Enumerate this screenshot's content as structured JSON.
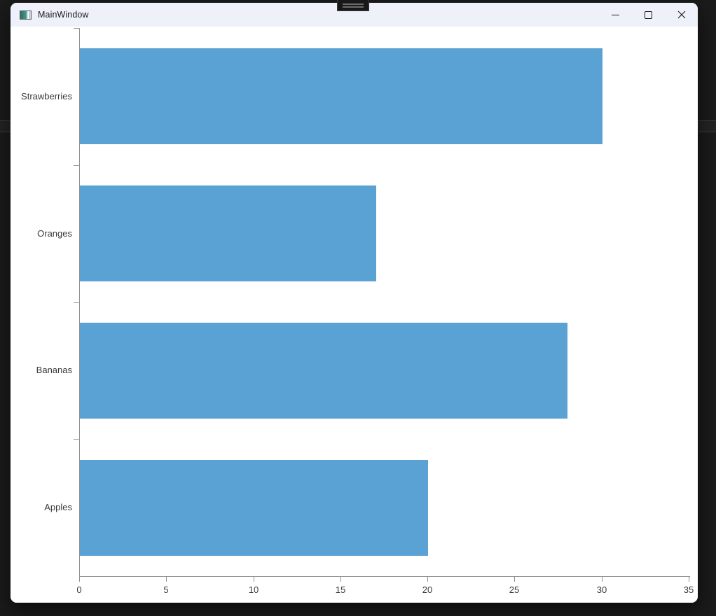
{
  "desktop": {
    "background_color": "#1b1b1b"
  },
  "window": {
    "title": "MainWindow",
    "titlebar_color": "#eef1f9",
    "background_color": "#ffffff"
  },
  "chart_data": {
    "type": "bar",
    "orientation": "horizontal",
    "title": "",
    "xlabel": "",
    "ylabel": "",
    "categories": [
      "Strawberries",
      "Oranges",
      "Bananas",
      "Apples"
    ],
    "values": [
      30,
      17,
      28,
      20
    ],
    "xlim": [
      0,
      35
    ],
    "x_ticks": [
      0,
      5,
      10,
      15,
      20,
      25,
      30,
      35
    ],
    "bar_color": "#5aa2d4",
    "axis_color": "#8f8f8f",
    "label_color": "#3a3a3a",
    "grid": false,
    "legend": false
  }
}
